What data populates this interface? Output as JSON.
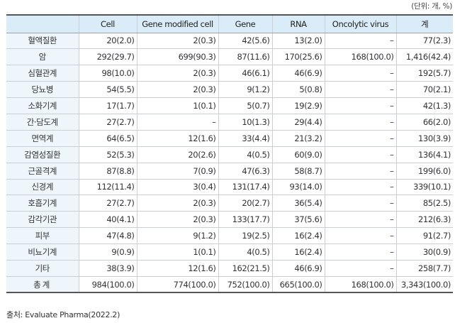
{
  "unit_note": "(단위: 개, %)",
  "headers": [
    "",
    "Cell",
    "Gene modified cell",
    "Gene",
    "RNA",
    "Oncolytic virus",
    "계"
  ],
  "rows": [
    [
      "혈액질환",
      "20(2.0)",
      "2(0.3)",
      "42(5.6)",
      "13(2.0)",
      "–",
      "77(2.3)"
    ],
    [
      "암",
      "292(29.7)",
      "699(90.3)",
      "87(11.6)",
      "170(25.6)",
      "168(100.0)",
      "1,416(42.4)"
    ],
    [
      "심혈관계",
      "98(10.0)",
      "2(0.3)",
      "46(6.1)",
      "46(6.9)",
      "–",
      "192(5.7)"
    ],
    [
      "당뇨병",
      "54(5.5)",
      "2(0.3)",
      "9(1.2)",
      "5(0.8)",
      "–",
      "70(2.1)"
    ],
    [
      "소화기계",
      "17(1.7)",
      "1(0.1)",
      "5(0.7)",
      "19(2.9)",
      "–",
      "42(1.3)"
    ],
    [
      "간·담도계",
      "27(2.7)",
      "–",
      "10(1.3)",
      "29(4.4)",
      "–",
      "66(2.0)"
    ],
    [
      "면역계",
      "64(6.5)",
      "12(1.6)",
      "33(4.4)",
      "21(3.2)",
      "–",
      "130(3.9)"
    ],
    [
      "감염성질환",
      "52(5.3)",
      "20(2.6)",
      "4(0.5)",
      "60(9.0)",
      "–",
      "136(4.1)"
    ],
    [
      "근골격계",
      "87(8.8)",
      "7(0.9)",
      "47(6.3)",
      "58(8.7)",
      "–",
      "199(6.0)"
    ],
    [
      "신경계",
      "112(11.4)",
      "3(0.4)",
      "131(17.4)",
      "93(14.0)",
      "–",
      "339(10.1)"
    ],
    [
      "호흡기계",
      "27(2.7)",
      "2(0.3)",
      "20(2.7)",
      "36(5.4)",
      "–",
      "85(2.5)"
    ],
    [
      "감각기관",
      "40(4.1)",
      "2(0.3)",
      "133(17.7)",
      "37(5.6)",
      "–",
      "212(6.3)"
    ],
    [
      "피부",
      "47(4.8)",
      "9(1.2)",
      "19(2.5)",
      "16(2.4)",
      "–",
      "91(2.7)"
    ],
    [
      "비뇨기계",
      "9(0.9)",
      "1(0.1)",
      "4(0.5)",
      "16(2.4)",
      "–",
      "30(0.9)"
    ],
    [
      "기타",
      "38(3.9)",
      "12(1.6)",
      "162(21.5)",
      "46(6.9)",
      "–",
      "258(7.7)"
    ],
    [
      "총계",
      "984(100.0)",
      "774(100.0)",
      "752(100.0)",
      "665(100.0)",
      "168(100.0)",
      "3,343(100.0)"
    ]
  ],
  "source": "출처: Evaluate Pharma(2022.2)"
}
